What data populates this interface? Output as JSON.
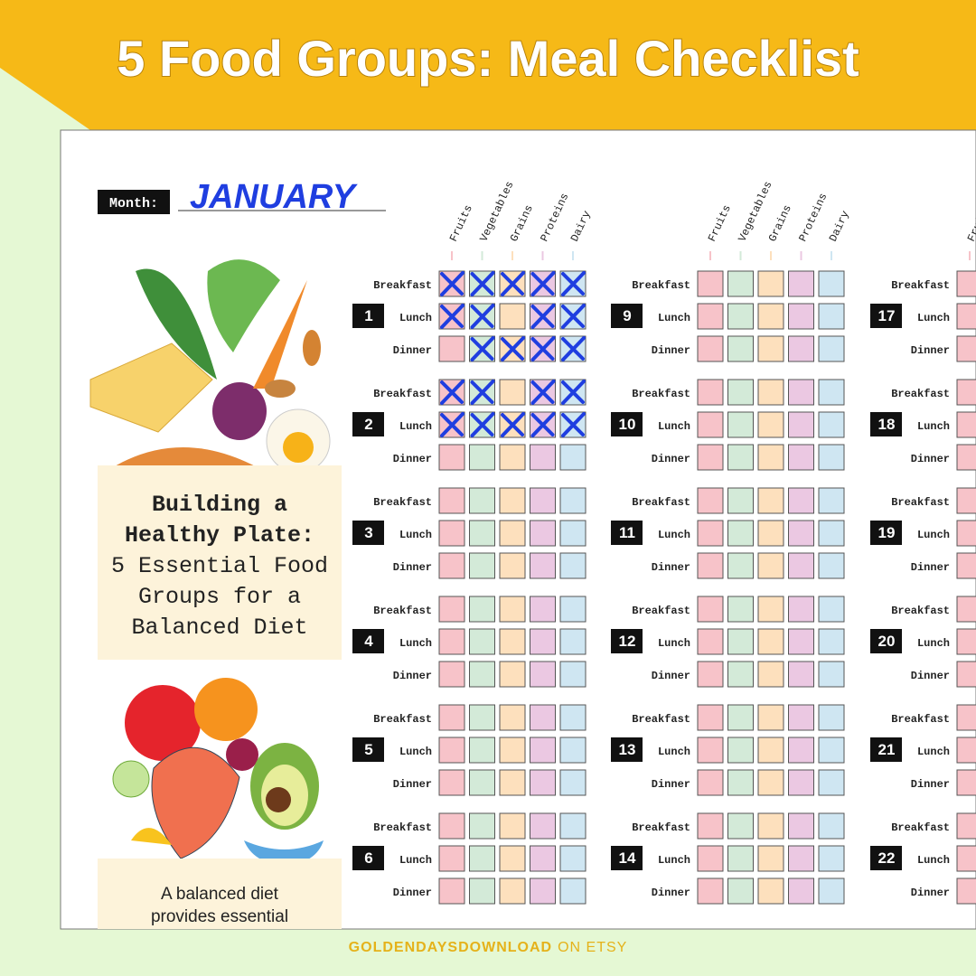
{
  "header": {
    "title": "5 Food Groups: Meal Checklist"
  },
  "month": {
    "label": "Month:",
    "value": "JANUARY"
  },
  "food_groups": [
    {
      "name": "Fruits",
      "color": "#f7c3c9"
    },
    {
      "name": "Vegetables",
      "color": "#d3ead8"
    },
    {
      "name": "Grains",
      "color": "#fde0bd"
    },
    {
      "name": "Proteins",
      "color": "#ebc8e2"
    },
    {
      "name": "Dairy",
      "color": "#cfe6f2"
    }
  ],
  "meals": [
    "Breakfast",
    "Lunch",
    "Dinner"
  ],
  "days": [
    {
      "number": 1,
      "checked": [
        [
          true,
          true,
          true,
          true,
          true
        ],
        [
          true,
          true,
          false,
          true,
          true
        ],
        [
          false,
          true,
          true,
          true,
          true
        ]
      ]
    },
    {
      "number": 2,
      "checked": [
        [
          true,
          true,
          false,
          true,
          true
        ],
        [
          true,
          true,
          true,
          true,
          true
        ],
        [
          false,
          false,
          false,
          false,
          false
        ]
      ]
    },
    {
      "number": 3
    },
    {
      "number": 4
    },
    {
      "number": 5
    },
    {
      "number": 6
    },
    {
      "number": 9
    },
    {
      "number": 10
    },
    {
      "number": 11
    },
    {
      "number": 12
    },
    {
      "number": 13
    },
    {
      "number": 14
    },
    {
      "number": 17
    },
    {
      "number": 18
    },
    {
      "number": 19
    },
    {
      "number": 20
    },
    {
      "number": 21
    },
    {
      "number": 22
    }
  ],
  "info_box": {
    "heading": [
      "Building a",
      "Healthy Plate:"
    ],
    "body": [
      "5 Essential Food",
      "Groups for a",
      "Balanced Diet"
    ]
  },
  "note": {
    "lines": [
      "A balanced diet",
      "provides essential"
    ]
  },
  "footer": {
    "brand": "GOLDENDAYSDOWNLOAD",
    "suffix": "ON ETSY"
  }
}
